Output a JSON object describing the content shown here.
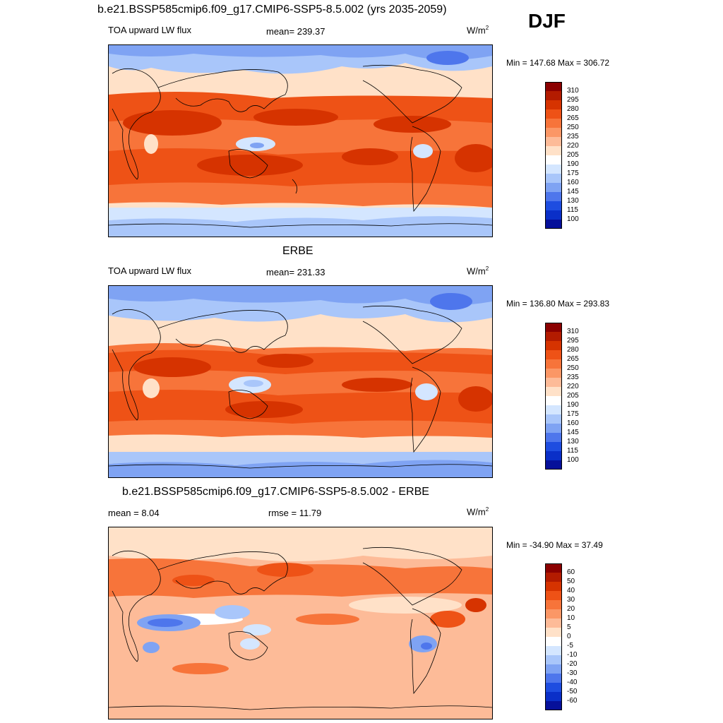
{
  "header": {
    "main_title": "b.e21.BSSP585cmip6.f09_g17.CMIP6-SSP5-8.5.002 (yrs 2035-2059)",
    "season": "DJF"
  },
  "panels": [
    {
      "title": "",
      "variable": "TOA upward LW flux",
      "stat": "mean= 239.37",
      "stat2": "",
      "units": "W/m",
      "units_sup": "2",
      "minmax": "Min = 147.68 Max = 306.72",
      "colorbar_labels": [
        "310",
        "295",
        "280",
        "265",
        "250",
        "235",
        "220",
        "205",
        "190",
        "175",
        "160",
        "145",
        "130",
        "115",
        "100"
      ],
      "colorbar_colors": [
        "#8b0000",
        "#b31b00",
        "#d63300",
        "#ee5216",
        "#f7743a",
        "#fb9766",
        "#fdbb98",
        "#ffe1c8",
        "#ffffff",
        "#d4e6ff",
        "#a9c6fa",
        "#7fa3f3",
        "#4e76ec",
        "#1e4de0",
        "#0a2fc8",
        "#06109a"
      ]
    },
    {
      "title": "ERBE",
      "variable": "TOA upward LW flux",
      "stat": "mean= 231.33",
      "stat2": "",
      "units": "W/m",
      "units_sup": "2",
      "minmax": "Min = 136.80 Max = 293.83",
      "colorbar_labels": [
        "310",
        "295",
        "280",
        "265",
        "250",
        "235",
        "220",
        "205",
        "190",
        "175",
        "160",
        "145",
        "130",
        "115",
        "100"
      ],
      "colorbar_colors": [
        "#8b0000",
        "#b31b00",
        "#d63300",
        "#ee5216",
        "#f7743a",
        "#fb9766",
        "#fdbb98",
        "#ffe1c8",
        "#ffffff",
        "#d4e6ff",
        "#a9c6fa",
        "#7fa3f3",
        "#4e76ec",
        "#1e4de0",
        "#0a2fc8",
        "#06109a"
      ]
    },
    {
      "title": "b.e21.BSSP585cmip6.f09_g17.CMIP6-SSP5-8.5.002 - ERBE",
      "variable": "",
      "stat": "mean =   8.04",
      "stat2": "rmse =  11.79",
      "units": "W/m",
      "units_sup": "2",
      "minmax": "Min = -34.90 Max =  37.49",
      "colorbar_labels": [
        "60",
        "50",
        "40",
        "30",
        "20",
        "10",
        "5",
        "0",
        "-5",
        "-10",
        "-20",
        "-30",
        "-40",
        "-50",
        "-60"
      ],
      "colorbar_colors": [
        "#8b0000",
        "#b31b00",
        "#d63300",
        "#ee5216",
        "#f7743a",
        "#fb9766",
        "#fdbb98",
        "#ffe1c8",
        "#ffffff",
        "#d4e6ff",
        "#a9c6fa",
        "#7fa3f3",
        "#4e76ec",
        "#1e4de0",
        "#0a2fc8",
        "#06109a"
      ]
    }
  ]
}
